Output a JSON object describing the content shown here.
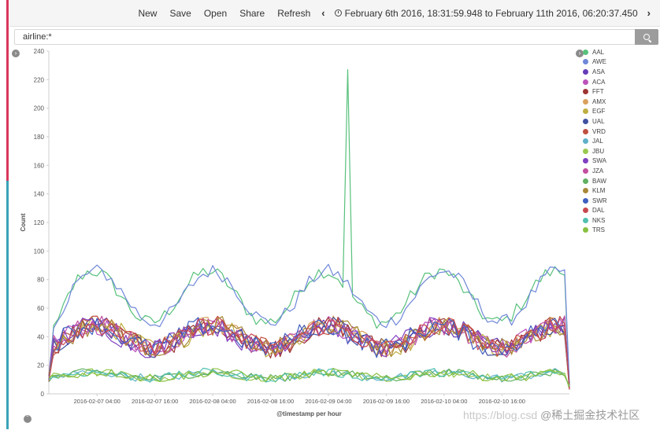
{
  "nav": {
    "new_label": "New",
    "save_label": "Save",
    "open_label": "Open",
    "share_label": "Share",
    "refresh_label": "Refresh",
    "time_range": "February 6th 2016, 18:31:59.948 to February 11th 2016, 06:20:37.450"
  },
  "search": {
    "query": "airline:*"
  },
  "watermark": {
    "url_text": "https://blog.csd",
    "brand_text": "@稀土掘金技术社区"
  },
  "chart_data": {
    "type": "line",
    "ylabel": "Count",
    "xlabel": "@timestamp per hour",
    "ylim": [
      0,
      240
    ],
    "yticks": [
      0,
      20,
      40,
      60,
      80,
      100,
      120,
      140,
      160,
      180,
      200,
      220,
      240
    ],
    "x_start": "2016-02-06 18:00",
    "x_end": "2016-02-11 06:00",
    "xticks": [
      "2016-02-07 04:00",
      "2016-02-07 16:00",
      "2016-02-08 04:00",
      "2016-02-08 16:00",
      "2016-02-09 04:00",
      "2016-02-09 16:00",
      "2016-02-10 04:00",
      "2016-02-10 16:00"
    ],
    "grid": false,
    "legend_position": "right",
    "series": [
      {
        "name": "AAL",
        "color": "#57c17b",
        "level": "high",
        "spike": {
          "at": "2016-02-09 08:00",
          "value": 227
        }
      },
      {
        "name": "AWE",
        "color": "#6f87d8",
        "level": "high"
      },
      {
        "name": "ASA",
        "color": "#663db8",
        "level": "mid"
      },
      {
        "name": "ACA",
        "color": "#bc52bc",
        "level": "mid"
      },
      {
        "name": "FFT",
        "color": "#9e3533",
        "level": "mid"
      },
      {
        "name": "AMX",
        "color": "#daa05d",
        "level": "mid"
      },
      {
        "name": "EGF",
        "color": "#bfaf40",
        "level": "mid"
      },
      {
        "name": "UAL",
        "color": "#4050a0",
        "level": "mid"
      },
      {
        "name": "VRD",
        "color": "#bf5040",
        "level": "mid"
      },
      {
        "name": "JAL",
        "color": "#5fb0c8",
        "level": "low"
      },
      {
        "name": "JBU",
        "color": "#98c850",
        "level": "low"
      },
      {
        "name": "SWA",
        "color": "#8040c0",
        "level": "mid"
      },
      {
        "name": "JZA",
        "color": "#c050a0",
        "level": "mid"
      },
      {
        "name": "BAW",
        "color": "#60b060",
        "level": "low"
      },
      {
        "name": "KLM",
        "color": "#a88838",
        "level": "mid"
      },
      {
        "name": "SWR",
        "color": "#4060c0",
        "level": "mid"
      },
      {
        "name": "DAL",
        "color": "#c84850",
        "level": "mid"
      },
      {
        "name": "NKS",
        "color": "#50c0b0",
        "level": "low"
      },
      {
        "name": "TRS",
        "color": "#88c040",
        "level": "low"
      }
    ]
  }
}
